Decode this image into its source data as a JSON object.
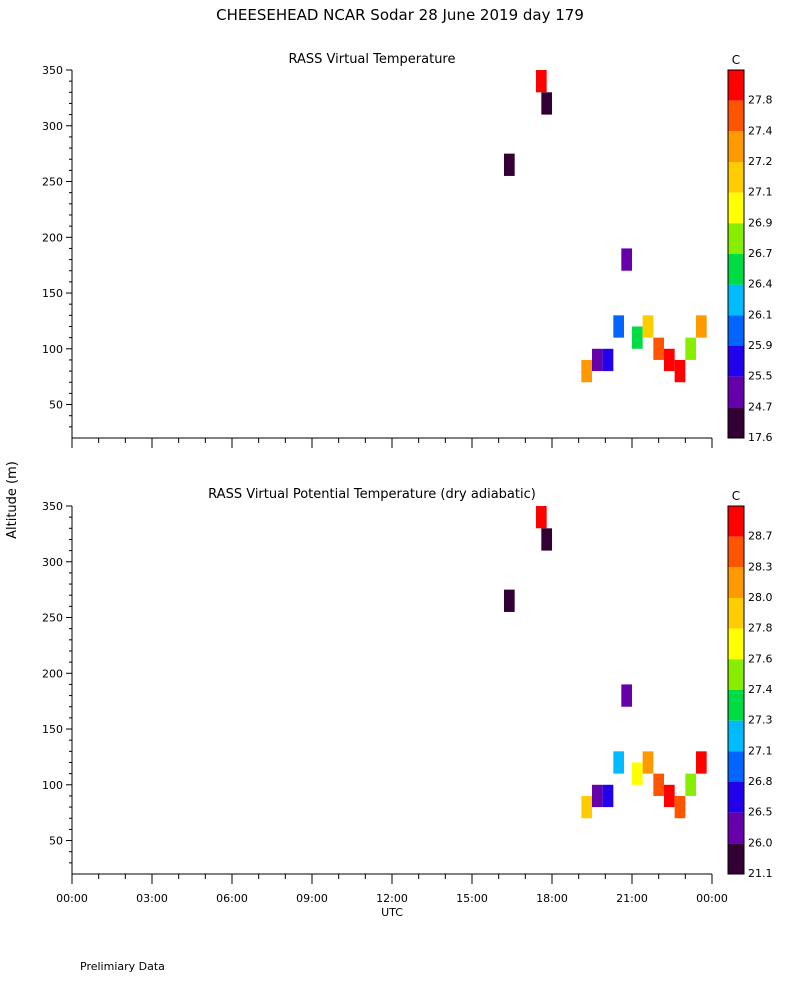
{
  "title": "CHEESEHEAD   NCAR Sodar   28 June 2019   day 179",
  "footer": "Prelimiary Data",
  "y_label": "Altitude (m)",
  "x_label": "UTC",
  "x_ticks": [
    "00:00",
    "03:00",
    "06:00",
    "09:00",
    "12:00",
    "15:00",
    "18:00",
    "21:00",
    "00:00"
  ],
  "y_ticks": [
    50,
    100,
    150,
    200,
    250,
    300,
    350
  ],
  "chart_data": [
    {
      "type": "heatmap",
      "title": "RASS Virtual Temperature",
      "xlabel": "UTC",
      "ylabel": "Altitude (m)",
      "xlim_hours": [
        0,
        24
      ],
      "ylim": [
        20,
        350
      ],
      "unit": "C",
      "colorbar": {
        "levels": [
          "27.8",
          "27.4",
          "27.2",
          "27.1",
          "26.9",
          "26.7",
          "26.4",
          "26.1",
          "25.9",
          "25.5",
          "24.7",
          "17.6"
        ],
        "colors": [
          "#ff0000",
          "#ff5500",
          "#ff9900",
          "#ffcc00",
          "#ffff00",
          "#88ee00",
          "#00dd44",
          "#00bbff",
          "#0066ff",
          "#2200ee",
          "#6600aa",
          "#330033"
        ]
      },
      "cells": [
        {
          "hour": 17.6,
          "altitude": 340,
          "value": "27.8"
        },
        {
          "hour": 17.8,
          "altitude": 320,
          "value": "17.6"
        },
        {
          "hour": 16.4,
          "altitude": 265,
          "value": "17.6"
        },
        {
          "hour": 19.3,
          "altitude": 80,
          "value": "27.2"
        },
        {
          "hour": 19.7,
          "altitude": 90,
          "value": "24.7"
        },
        {
          "hour": 20.1,
          "altitude": 90,
          "value": "25.5"
        },
        {
          "hour": 20.5,
          "altitude": 120,
          "value": "25.9"
        },
        {
          "hour": 20.8,
          "altitude": 180,
          "value": "24.7"
        },
        {
          "hour": 21.2,
          "altitude": 110,
          "value": "26.4"
        },
        {
          "hour": 21.6,
          "altitude": 120,
          "value": "27.1"
        },
        {
          "hour": 22.0,
          "altitude": 100,
          "value": "27.4"
        },
        {
          "hour": 22.4,
          "altitude": 90,
          "value": "27.8"
        },
        {
          "hour": 22.8,
          "altitude": 80,
          "value": "27.8"
        },
        {
          "hour": 23.2,
          "altitude": 100,
          "value": "26.7"
        },
        {
          "hour": 23.6,
          "altitude": 120,
          "value": "27.2"
        }
      ]
    },
    {
      "type": "heatmap",
      "title": "RASS Virtual Potential Temperature (dry adiabatic)",
      "xlabel": "UTC",
      "ylabel": "Altitude (m)",
      "xlim_hours": [
        0,
        24
      ],
      "ylim": [
        20,
        350
      ],
      "unit": "C",
      "colorbar": {
        "levels": [
          "28.7",
          "28.3",
          "28.0",
          "27.8",
          "27.6",
          "27.4",
          "27.3",
          "27.1",
          "26.8",
          "26.5",
          "26.0",
          "21.1"
        ],
        "colors": [
          "#ff0000",
          "#ff5500",
          "#ff9900",
          "#ffcc00",
          "#ffff00",
          "#88ee00",
          "#00dd44",
          "#00bbff",
          "#0066ff",
          "#2200ee",
          "#6600aa",
          "#330033"
        ]
      },
      "cells": [
        {
          "hour": 17.6,
          "altitude": 340,
          "value": "28.7"
        },
        {
          "hour": 17.8,
          "altitude": 320,
          "value": "21.1"
        },
        {
          "hour": 16.4,
          "altitude": 265,
          "value": "21.1"
        },
        {
          "hour": 19.3,
          "altitude": 80,
          "value": "27.8"
        },
        {
          "hour": 19.7,
          "altitude": 90,
          "value": "26.0"
        },
        {
          "hour": 20.1,
          "altitude": 90,
          "value": "26.5"
        },
        {
          "hour": 20.5,
          "altitude": 120,
          "value": "27.1"
        },
        {
          "hour": 20.8,
          "altitude": 180,
          "value": "26.0"
        },
        {
          "hour": 21.2,
          "altitude": 110,
          "value": "27.6"
        },
        {
          "hour": 21.6,
          "altitude": 120,
          "value": "28.0"
        },
        {
          "hour": 22.0,
          "altitude": 100,
          "value": "28.3"
        },
        {
          "hour": 22.4,
          "altitude": 90,
          "value": "28.7"
        },
        {
          "hour": 22.8,
          "altitude": 80,
          "value": "28.3"
        },
        {
          "hour": 23.2,
          "altitude": 100,
          "value": "27.4"
        },
        {
          "hour": 23.6,
          "altitude": 120,
          "value": "28.7"
        }
      ]
    }
  ]
}
